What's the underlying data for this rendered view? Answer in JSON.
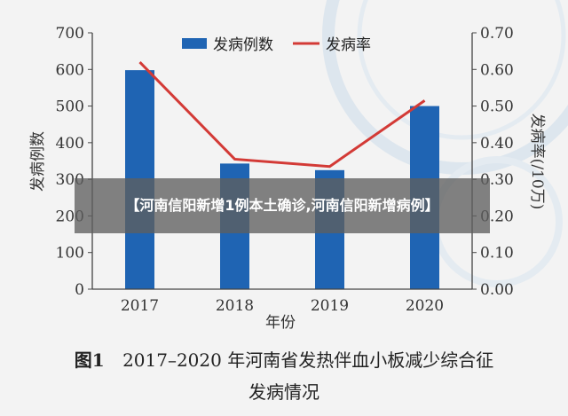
{
  "chart_data": {
    "type": "bar+line",
    "categories": [
      "2017",
      "2018",
      "2019",
      "2020"
    ],
    "xlabel": "年份",
    "series": [
      {
        "name": "发病例数",
        "type": "bar",
        "axis": "left",
        "values": [
          598,
          343,
          325,
          500
        ]
      },
      {
        "name": "发病率",
        "type": "line",
        "axis": "right",
        "values": [
          0.62,
          0.355,
          0.335,
          0.515
        ]
      }
    ],
    "y_left": {
      "label": "发病例数",
      "ylim": [
        0,
        700
      ],
      "ticks": [
        "0",
        "100",
        "200",
        "300",
        "400",
        "500",
        "600",
        "700"
      ]
    },
    "y_right": {
      "label": "发病率(/10万)",
      "ylim": [
        0,
        0.7
      ],
      "ticks": [
        "0.00",
        "0.10",
        "0.20",
        "0.30",
        "0.40",
        "0.50",
        "0.60",
        "0.70"
      ]
    },
    "legend_position": "top",
    "grid": false
  },
  "colors": {
    "bar": "#1f64b3",
    "line": "#d33a36",
    "axis": "#444444"
  },
  "banner": {
    "text": "【河南信阳新增1例本土确诊,河南信阳新增病例】"
  },
  "caption": {
    "figure_label": "图1",
    "line1": "2017–2020 年河南省发热伴血小板减少综合征",
    "line2": "发病情况"
  }
}
